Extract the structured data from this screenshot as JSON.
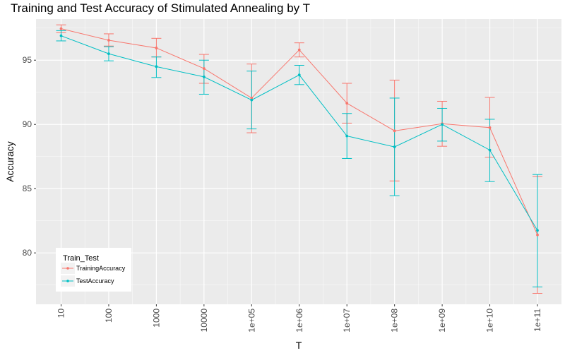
{
  "chart_data": {
    "type": "line",
    "title": "Training and Test Accuracy of Stimulated Annealing by T",
    "xlabel": "T",
    "ylabel": "Accuracy",
    "categories": [
      "10",
      "100",
      "1000",
      "10000",
      "1e+05",
      "1e+06",
      "1e+07",
      "1e+08",
      "1e+09",
      "1e+10",
      "1e+11"
    ],
    "ylim": [
      76.0,
      98.2
    ],
    "yticks": [
      80,
      85,
      90,
      95
    ],
    "grid": true,
    "legend": {
      "title": "Train_Test",
      "position": "bottom-left"
    },
    "series": [
      {
        "name": "TrainingAccuracy",
        "color": "#F8766D",
        "values": [
          97.45,
          96.55,
          95.95,
          94.35,
          92.05,
          95.8,
          91.65,
          89.5,
          90.05,
          89.75,
          81.4
        ],
        "error_low": [
          97.15,
          96.1,
          95.25,
          93.2,
          89.35,
          95.25,
          90.1,
          85.6,
          88.3,
          87.45,
          76.85
        ],
        "error_high": [
          97.75,
          97.05,
          96.7,
          95.45,
          94.7,
          96.35,
          93.2,
          93.45,
          91.8,
          92.1,
          85.95
        ]
      },
      {
        "name": "TestAccuracy",
        "color": "#00BFC4",
        "values": [
          96.9,
          95.5,
          94.5,
          93.7,
          91.9,
          93.85,
          89.1,
          88.25,
          90.0,
          88.0,
          81.75
        ],
        "error_low": [
          96.5,
          94.95,
          93.65,
          92.35,
          89.65,
          93.1,
          87.35,
          84.45,
          88.7,
          85.55,
          77.35
        ],
        "error_high": [
          97.3,
          96.05,
          95.25,
          95.0,
          94.15,
          94.6,
          90.85,
          92.05,
          91.25,
          90.4,
          86.1
        ]
      }
    ]
  }
}
